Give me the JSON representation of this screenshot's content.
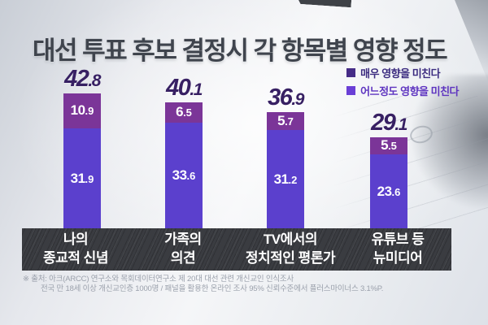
{
  "title": "대선 투표 후보 결정시 각 항목별 영향 정도",
  "legend": {
    "items": [
      {
        "label": "매우 영향을 미친다",
        "color": "#462c87"
      },
      {
        "label": "어느정도 영향을 미친다",
        "color": "#6a3fd6"
      }
    ]
  },
  "chart_data": {
    "type": "bar",
    "stacked": true,
    "unit": "%",
    "title": "대선 투표 후보 결정시 각 항목별 영향 정도",
    "categories": [
      "나의 종교적 신념",
      "가족의 의견",
      "TV에서의 정치적인 평론가",
      "유튜브 등 뉴미디어"
    ],
    "series": [
      {
        "name": "매우 영향을 미친다",
        "color": "#7b3598",
        "values": [
          10.9,
          6.5,
          5.7,
          5.5
        ]
      },
      {
        "name": "어느정도 영향을 미친다",
        "color": "#5b40cd",
        "values": [
          31.9,
          33.6,
          31.2,
          23.6
        ]
      }
    ],
    "totals": [
      42.8,
      40.1,
      36.9,
      29.1
    ],
    "ylim": [
      0,
      45
    ],
    "grid": false,
    "legend_position": "top-right"
  },
  "bars": [
    {
      "category_line1": "나의",
      "category_line2": "종교적 신념",
      "total_int": "42",
      "total_dec": ".8",
      "very_int": "10",
      "very_dec": ".9",
      "some_int": "31",
      "some_dec": ".9"
    },
    {
      "category_line1": "가족의",
      "category_line2": "의견",
      "total_int": "40",
      "total_dec": ".1",
      "very_int": "6",
      "very_dec": ".5",
      "some_int": "33",
      "some_dec": ".6"
    },
    {
      "category_line1": "TV에서의",
      "category_line2": "정치적인 평론가",
      "total_int": "36",
      "total_dec": ".9",
      "very_int": "5",
      "very_dec": ".7",
      "some_int": "31",
      "some_dec": ".2"
    },
    {
      "category_line1": "유튜브 등",
      "category_line2": "뉴미디어",
      "total_int": "29",
      "total_dec": ".1",
      "very_int": "5",
      "very_dec": ".5",
      "some_int": "23",
      "some_dec": ".6"
    }
  ],
  "footer": {
    "line1": "※ 출처: 아크(ARCC) 연구소와 목회데이터연구소 제 20대 대선 관련 개신교인 인식조사",
    "line2": "전국 만 18세 이상 개신교인층 1000명 / 패널을 활용한 온라인 조사 95% 신뢰수준에서 플러스마이너스 3.1%P."
  },
  "colors": {
    "title_text": "#3f444d",
    "total_text": "#372063",
    "segment_very": "#7b3598",
    "segment_somewhat": "#5b40cd",
    "band_bg": "#3a3c41",
    "band_text": "#ffffff",
    "footer_text": "#9ba1ac"
  }
}
